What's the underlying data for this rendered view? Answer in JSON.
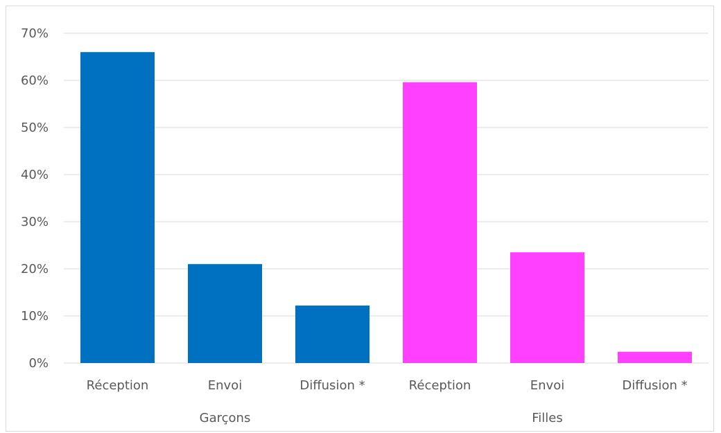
{
  "chart_data": {
    "type": "bar",
    "groups": [
      {
        "name": "Garçons",
        "color": "#0070c0",
        "categories": [
          "Réception",
          "Envoi",
          "Diffusion *"
        ],
        "values": [
          66,
          21,
          12.2
        ]
      },
      {
        "name": "Filles",
        "color": "#ff40ff",
        "categories": [
          "Réception",
          "Envoi",
          "Diffusion *"
        ],
        "values": [
          59.6,
          23.5,
          2.4
        ]
      }
    ],
    "ylim": [
      0,
      70
    ],
    "yticks": [
      "0%",
      "10%",
      "20%",
      "30%",
      "40%",
      "50%",
      "60%",
      "70%"
    ],
    "grid": true,
    "gridColor": "#d9d9d9"
  }
}
